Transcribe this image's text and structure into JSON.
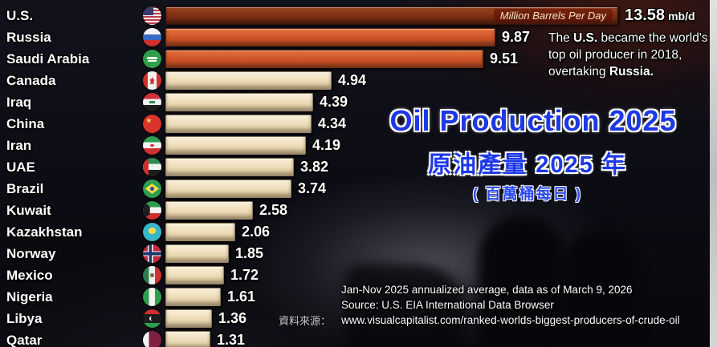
{
  "chart_data": {
    "type": "bar",
    "orientation": "horizontal",
    "title": "Oil Production 2025",
    "unit": "mb/d",
    "unit_label": "Million Barrels Per Day",
    "xlim": [
      0,
      14
    ],
    "categories": [
      "U.S.",
      "Russia",
      "Saudi Arabia",
      "Canada",
      "Iraq",
      "China",
      "Iran",
      "UAE",
      "Brazil",
      "Kuwait",
      "Kazakhstan",
      "Norway",
      "Mexico",
      "Nigeria",
      "Libya",
      "Qatar"
    ],
    "values": [
      13.58,
      9.87,
      9.51,
      4.94,
      4.39,
      4.34,
      4.19,
      3.82,
      3.74,
      2.58,
      2.06,
      1.85,
      1.72,
      1.61,
      1.36,
      1.31
    ],
    "bar_colors": {
      "rank1": "#7c2e12",
      "rank2_3": "#cf5527",
      "others": "#efdfbc"
    }
  },
  "rows": [
    {
      "country": "U.S.",
      "flag": "us-flag-icon",
      "value_label": "13.58",
      "unit_suffix": "mb/d"
    },
    {
      "country": "Russia",
      "flag": "russia-flag-icon",
      "value_label": "9.87"
    },
    {
      "country": "Saudi Arabia",
      "flag": "saudi-arabia-flag-icon",
      "value_label": "9.51"
    },
    {
      "country": "Canada",
      "flag": "canada-flag-icon",
      "value_label": "4.94"
    },
    {
      "country": "Iraq",
      "flag": "iraq-flag-icon",
      "value_label": "4.39"
    },
    {
      "country": "China",
      "flag": "china-flag-icon",
      "value_label": "4.34"
    },
    {
      "country": "Iran",
      "flag": "iran-flag-icon",
      "value_label": "4.19"
    },
    {
      "country": "UAE",
      "flag": "uae-flag-icon",
      "value_label": "3.82"
    },
    {
      "country": "Brazil",
      "flag": "brazil-flag-icon",
      "value_label": "3.74"
    },
    {
      "country": "Kuwait",
      "flag": "kuwait-flag-icon",
      "value_label": "2.58"
    },
    {
      "country": "Kazakhstan",
      "flag": "kazakhstan-flag-icon",
      "value_label": "2.06"
    },
    {
      "country": "Norway",
      "flag": "norway-flag-icon",
      "value_label": "1.85"
    },
    {
      "country": "Mexico",
      "flag": "mexico-flag-icon",
      "value_label": "1.72"
    },
    {
      "country": "Nigeria",
      "flag": "nigeria-flag-icon",
      "value_label": "1.61"
    },
    {
      "country": "Libya",
      "flag": "libya-flag-icon",
      "value_label": "1.36"
    },
    {
      "country": "Qatar",
      "flag": "qatar-flag-icon",
      "value_label": "1.31"
    }
  ],
  "titles": {
    "main": "Oil Production 2025",
    "chinese": "原油產量 2025 年",
    "chinese_sub": "( 百萬桶每日 )",
    "title_color": "#1d38e8"
  },
  "annotation": {
    "part1": "The ",
    "bold1": "U.S.",
    "part2": " became the world's top oil producer in 2018, overtaking ",
    "bold2": "Russia."
  },
  "footer": {
    "line1": "Jan-Nov 2025 annualized average, data as of March 9, 2026",
    "line2": "Source: U.S. EIA International Data Browser",
    "line3": "www.visualcapitalist.com/ranked-worlds-biggest-producers-of-crude-oil"
  },
  "watermark": "資料來源："
}
